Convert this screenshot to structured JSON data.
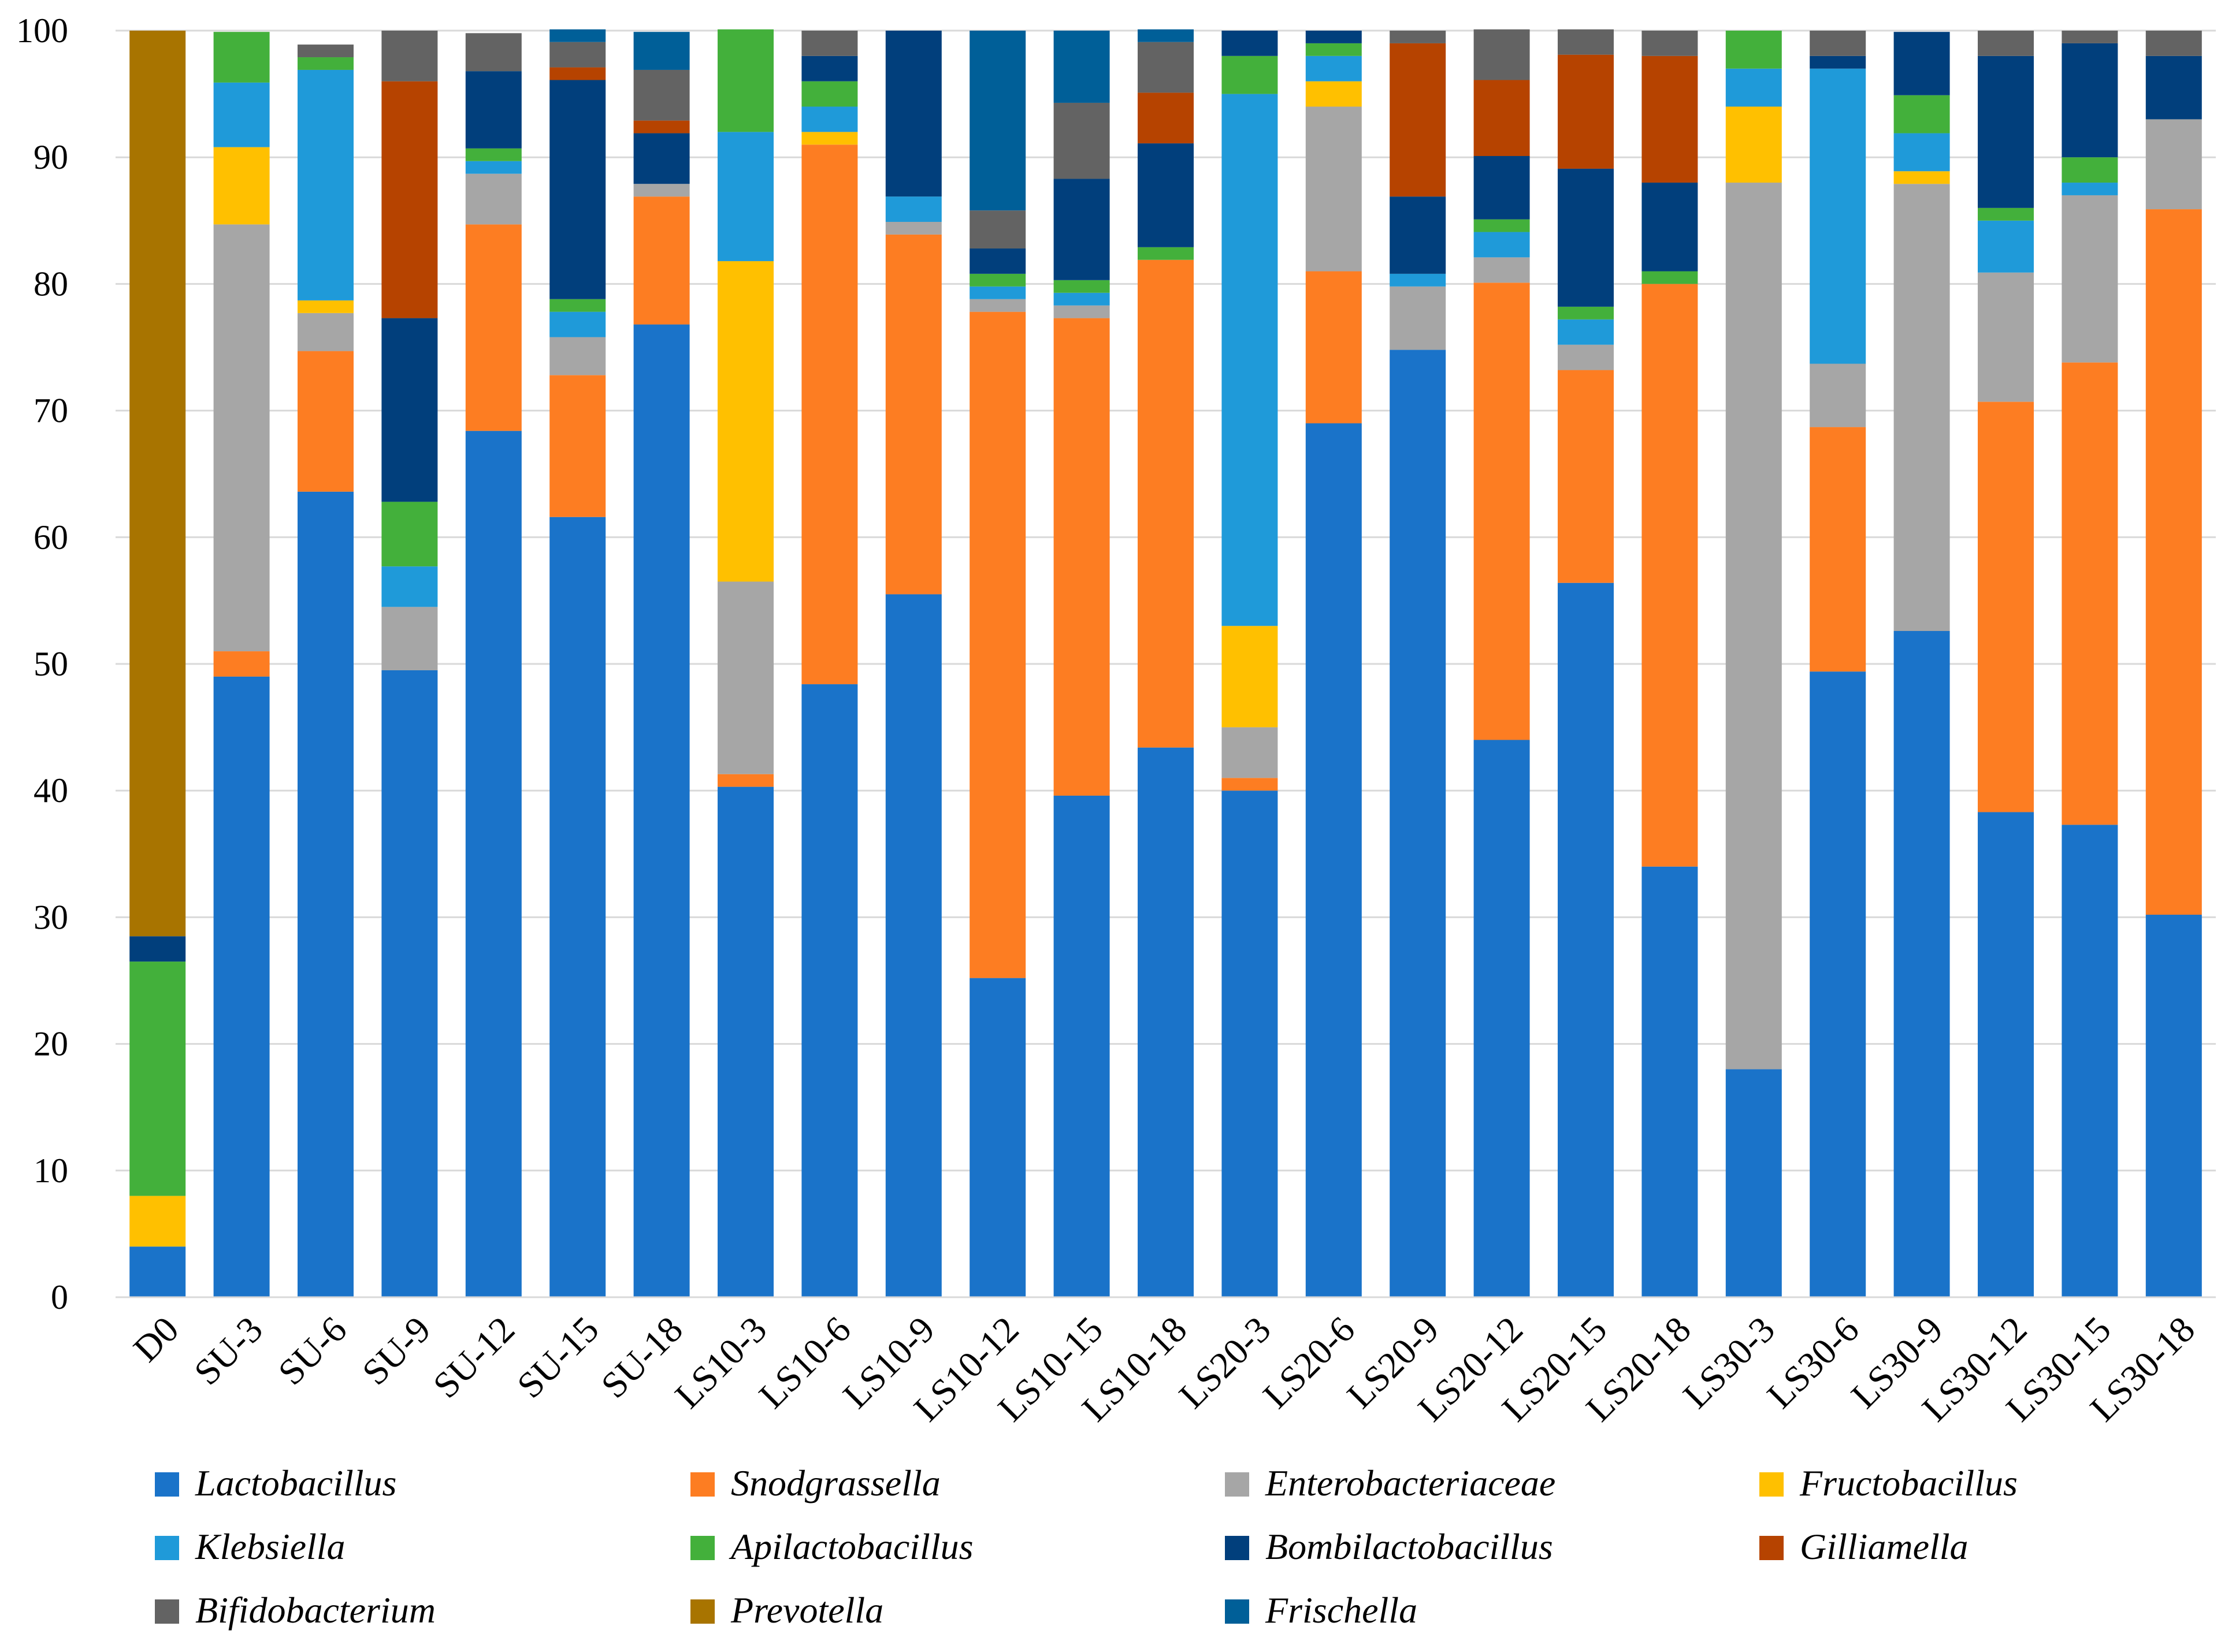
{
  "chart_data": {
    "type": "bar",
    "stacked": true,
    "title": "",
    "xlabel": "",
    "ylabel": "",
    "ylim": [
      0,
      100
    ],
    "yticks": [
      0,
      10,
      20,
      30,
      40,
      50,
      60,
      70,
      80,
      90,
      100
    ],
    "grid": true,
    "legend_position": "bottom",
    "categories": [
      "D0",
      "SU-3",
      "SU-6",
      "SU-9",
      "SU-12",
      "SU-15",
      "SU-18",
      "LS10-3",
      "LS10-6",
      "LS10-9",
      "LS10-12",
      "LS10-15",
      "LS10-18",
      "LS20-3",
      "LS20-6",
      "LS20-9",
      "LS20-12",
      "LS20-15",
      "LS20-18",
      "LS30-3",
      "LS30-6",
      "LS30-9",
      "LS30-12",
      "LS30-15",
      "LS30-18"
    ],
    "series": [
      {
        "name": "Lactobacillus",
        "color": "#1a73c9",
        "values": [
          4.0,
          49.0,
          63.6,
          49.5,
          68.4,
          61.6,
          76.8,
          40.3,
          48.4,
          55.5,
          25.2,
          39.6,
          43.4,
          40.0,
          69.0,
          74.8,
          44.0,
          56.4,
          34.0,
          18.0,
          49.4,
          52.6,
          38.3,
          37.3,
          30.2
        ]
      },
      {
        "name": "Snodgrassella",
        "color": "#fd7d22",
        "values": [
          0,
          2.0,
          11.1,
          0,
          16.3,
          11.2,
          10.1,
          1.0,
          42.6,
          28.4,
          52.6,
          37.7,
          38.5,
          1.0,
          12.0,
          0,
          36.1,
          16.8,
          46.0,
          0,
          19.3,
          0,
          32.4,
          36.5,
          55.7
        ]
      },
      {
        "name": "Enterobacteriaceae",
        "color": "#a6a6a6",
        "values": [
          0,
          33.7,
          3.0,
          5.0,
          4.0,
          3.0,
          1.0,
          15.2,
          0,
          1.0,
          1.0,
          1.0,
          0,
          4.0,
          13.0,
          5.0,
          2.0,
          2.0,
          0,
          70.0,
          5.0,
          35.3,
          10.2,
          13.2,
          7.1
        ]
      },
      {
        "name": "Fructobacillus",
        "color": "#ffc000",
        "values": [
          4.0,
          6.1,
          1.0,
          0,
          0,
          0,
          0,
          25.3,
          1.0,
          0,
          0,
          0,
          0,
          8.0,
          2.0,
          0,
          0,
          0,
          0,
          6.0,
          0,
          1.0,
          0,
          0,
          0
        ]
      },
      {
        "name": "Klebsiella",
        "color": "#1f9ad9",
        "values": [
          0,
          5.1,
          18.2,
          3.2,
          1.0,
          2.0,
          0,
          10.2,
          2.0,
          2.0,
          1.0,
          1.0,
          0,
          42.0,
          2.0,
          1.0,
          2.0,
          2.0,
          0,
          3.0,
          23.3,
          3.0,
          4.1,
          1.0,
          0
        ]
      },
      {
        "name": "Apilactobacillus",
        "color": "#43b03b",
        "values": [
          18.5,
          4.0,
          1.0,
          5.1,
          1.0,
          1.0,
          0,
          8.1,
          2.0,
          0,
          1.0,
          1.0,
          1.0,
          3.0,
          1.0,
          0,
          1.0,
          1.0,
          1.0,
          3.0,
          0,
          3.0,
          1.0,
          2.0,
          0
        ]
      },
      {
        "name": "Bombilactobacillus",
        "color": "#013f7c",
        "values": [
          2.0,
          0,
          0,
          14.5,
          6.1,
          17.3,
          4.0,
          0,
          2.0,
          13.1,
          2.0,
          8.0,
          8.2,
          2.0,
          1.0,
          6.1,
          5.0,
          10.9,
          7.0,
          0,
          1.0,
          5.0,
          12.0,
          9.0,
          5.0
        ]
      },
      {
        "name": "Gilliamella",
        "color": "#b64300",
        "values": [
          0,
          0,
          0,
          18.7,
          0,
          1.0,
          1.0,
          0,
          0,
          0,
          0,
          0,
          4.0,
          0,
          0,
          12.1,
          6.0,
          9.0,
          10.0,
          0,
          0,
          0,
          0,
          0,
          0
        ]
      },
      {
        "name": "Bifidobacterium",
        "color": "#636363",
        "values": [
          0,
          0,
          1.0,
          4.0,
          3.0,
          2.0,
          4.0,
          0,
          2.0,
          0,
          3.0,
          6.0,
          4.0,
          0,
          0,
          1.0,
          4.0,
          2.0,
          2.0,
          0,
          2.0,
          0,
          2.0,
          1.0,
          2.0
        ]
      },
      {
        "name": "Prevotella",
        "color": "#a87400",
        "values": [
          71.5,
          0,
          0,
          0,
          0,
          0,
          0,
          0,
          0,
          0,
          0,
          0,
          0,
          0,
          0,
          0,
          0,
          0,
          0,
          0,
          0,
          0,
          0,
          0,
          0
        ]
      },
      {
        "name": "Frischella",
        "color": "#005f98",
        "values": [
          0,
          0,
          0,
          0,
          0,
          1.0,
          3.0,
          0,
          0,
          0,
          14.2,
          5.7,
          1.0,
          0,
          0,
          0,
          0,
          0,
          0,
          0,
          0,
          0,
          0,
          0,
          0
        ]
      }
    ]
  }
}
